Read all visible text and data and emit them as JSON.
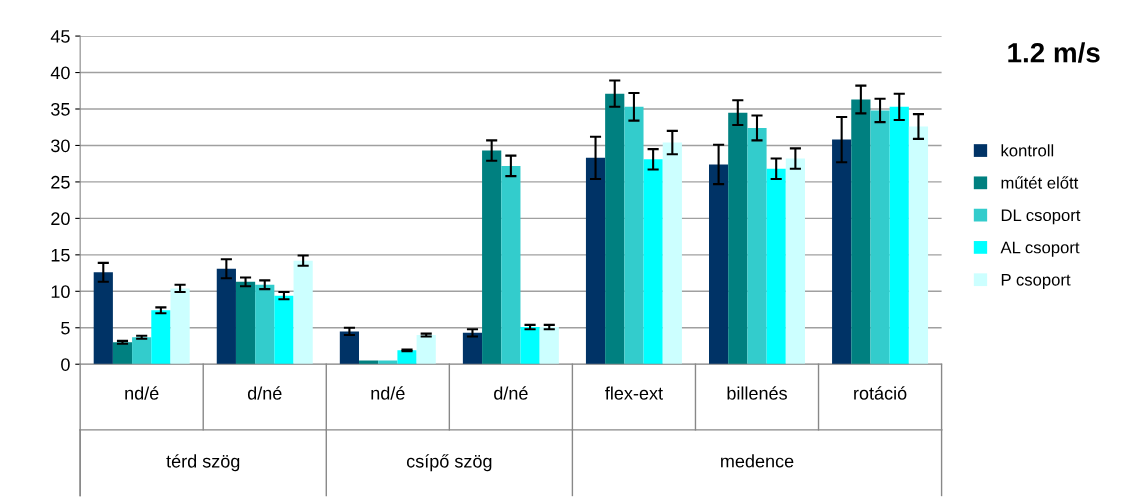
{
  "chart_data": {
    "type": "bar",
    "title": "1.2 m/s",
    "categories": [
      "nd/é",
      "d/né",
      "nd/é",
      "d/né",
      "flex-ext",
      "billenés",
      "rotáció"
    ],
    "annotations": [
      "térd szög",
      "csípő szög",
      "medence"
    ],
    "series": [
      {
        "name": "kontroll",
        "color": "#003366",
        "values": [
          12.6,
          13.1,
          4.5,
          4.3,
          28.3,
          27.4,
          30.8
        ],
        "errors": [
          1.3,
          1.3,
          0.5,
          0.5,
          2.9,
          2.7,
          3.1
        ]
      },
      {
        "name": "műtét előtt",
        "color": "#008080",
        "values": [
          3.0,
          11.3,
          0.5,
          29.3,
          37.1,
          34.5,
          36.3
        ],
        "errors": [
          0.2,
          0.6,
          null,
          1.4,
          1.8,
          1.7,
          1.9
        ]
      },
      {
        "name": "DL csoport",
        "color": "#33cccc",
        "values": [
          3.7,
          10.9,
          0.5,
          27.2,
          35.3,
          32.4,
          34.8
        ],
        "errors": [
          0.2,
          0.6,
          null,
          1.4,
          1.9,
          1.7,
          1.6
        ]
      },
      {
        "name": "AL csoport",
        "color": "#00ffff",
        "values": [
          7.4,
          9.4,
          1.9,
          5.1,
          28.1,
          26.8,
          35.3
        ],
        "errors": [
          0.4,
          0.5,
          0.1,
          0.3,
          1.4,
          1.4,
          1.8
        ]
      },
      {
        "name": "P csoport",
        "color": "#ccffff",
        "values": [
          10.4,
          14.2,
          4.0,
          5.1,
          30.4,
          28.2,
          32.6
        ],
        "errors": [
          0.5,
          0.7,
          0.2,
          0.3,
          1.6,
          1.4,
          1.7
        ]
      }
    ],
    "ylim": [
      0,
      45
    ],
    "yticks": [
      0,
      5,
      10,
      15,
      20,
      25,
      30,
      35,
      40,
      45
    ],
    "grid": "y",
    "legend": "right"
  }
}
